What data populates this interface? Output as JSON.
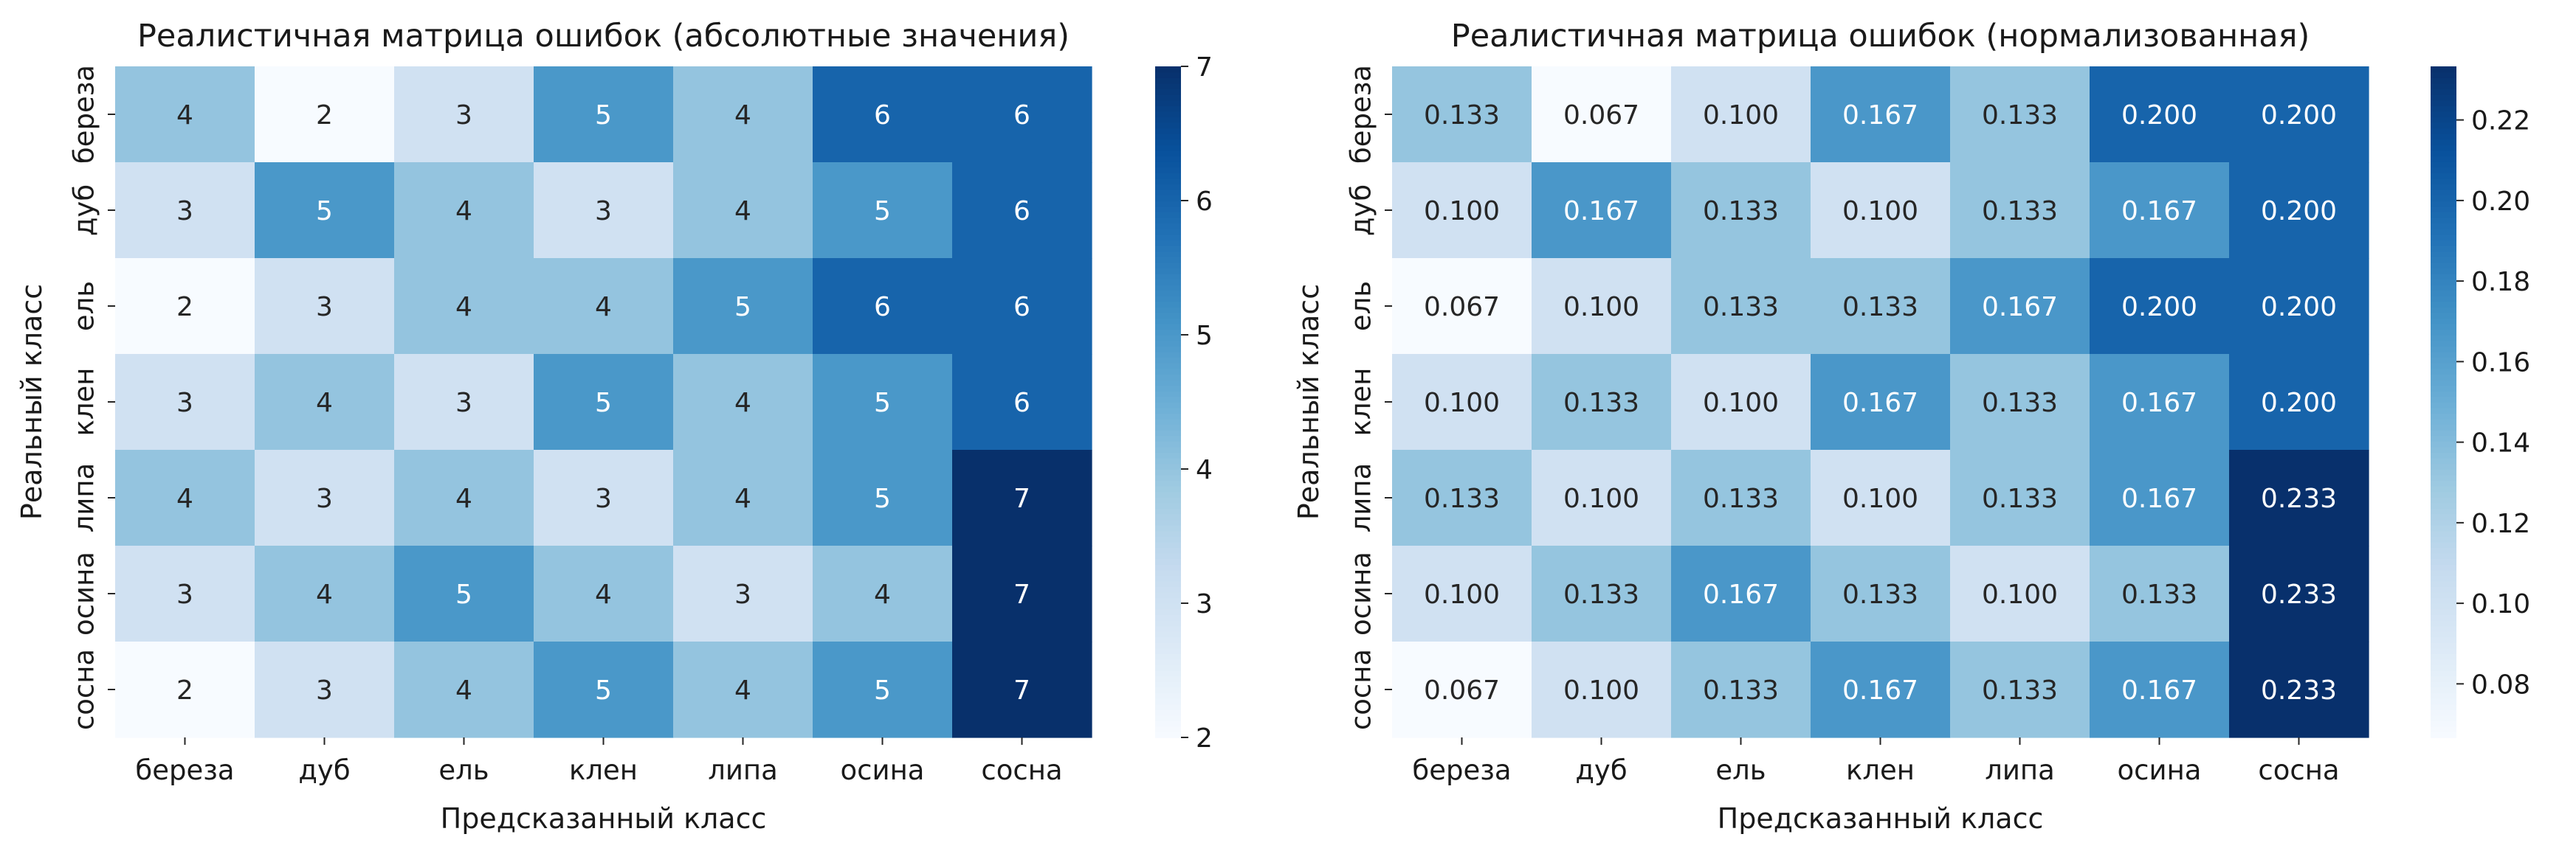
{
  "chart_data": [
    {
      "type": "heatmap",
      "title": "Реалистичная матрица ошибок (абсолютные значения)",
      "xlabel": "Предсказанный класс",
      "ylabel": "Реальный класс",
      "x_categories": [
        "береза",
        "дуб",
        "ель",
        "клен",
        "липа",
        "осина",
        "сосна"
      ],
      "y_categories": [
        "береза",
        "дуб",
        "ель",
        "клен",
        "липа",
        "осина",
        "сосна"
      ],
      "values": [
        [
          4,
          2,
          3,
          5,
          4,
          6,
          6
        ],
        [
          3,
          5,
          4,
          3,
          4,
          5,
          6
        ],
        [
          2,
          3,
          4,
          4,
          5,
          6,
          6
        ],
        [
          3,
          4,
          3,
          5,
          4,
          5,
          6
        ],
        [
          4,
          3,
          4,
          3,
          4,
          5,
          7
        ],
        [
          3,
          4,
          5,
          4,
          3,
          4,
          7
        ],
        [
          2,
          3,
          4,
          5,
          4,
          5,
          7
        ]
      ],
      "value_format": "int",
      "colorbar": {
        "min": 2,
        "max": 7,
        "ticks": [
          2,
          3,
          4,
          5,
          6,
          7
        ],
        "tick_format": "int"
      },
      "colormap": "Blues"
    },
    {
      "type": "heatmap",
      "title": "Реалистичная матрица ошибок (нормализованная)",
      "xlabel": "Предсказанный класс",
      "ylabel": "Реальный класс",
      "x_categories": [
        "береза",
        "дуб",
        "ель",
        "клен",
        "липа",
        "осина",
        "сосна"
      ],
      "y_categories": [
        "береза",
        "дуб",
        "ель",
        "клен",
        "липа",
        "осина",
        "сосна"
      ],
      "values": [
        [
          0.133,
          0.067,
          0.1,
          0.167,
          0.133,
          0.2,
          0.2
        ],
        [
          0.1,
          0.167,
          0.133,
          0.1,
          0.133,
          0.167,
          0.2
        ],
        [
          0.067,
          0.1,
          0.133,
          0.133,
          0.167,
          0.2,
          0.2
        ],
        [
          0.1,
          0.133,
          0.1,
          0.167,
          0.133,
          0.167,
          0.2
        ],
        [
          0.133,
          0.1,
          0.133,
          0.1,
          0.133,
          0.167,
          0.233
        ],
        [
          0.1,
          0.133,
          0.167,
          0.133,
          0.1,
          0.133,
          0.233
        ],
        [
          0.067,
          0.1,
          0.133,
          0.167,
          0.133,
          0.167,
          0.233
        ]
      ],
      "value_format": "3dp",
      "colorbar": {
        "min": 0.0667,
        "max": 0.2333,
        "ticks": [
          0.08,
          0.1,
          0.12,
          0.14,
          0.16,
          0.18,
          0.2,
          0.22
        ],
        "tick_format": "2dp"
      },
      "colormap": "Blues"
    }
  ]
}
